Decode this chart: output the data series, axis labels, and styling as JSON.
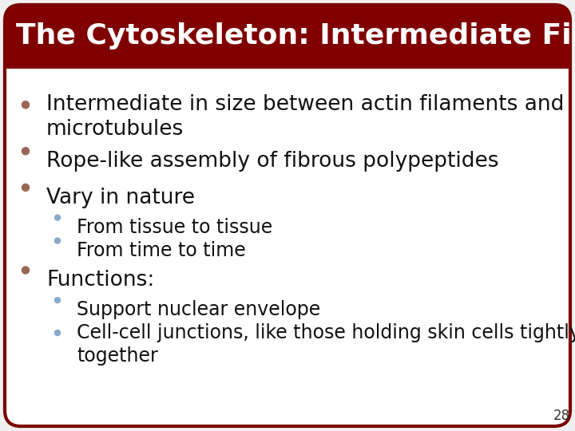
{
  "title": "The Cytoskeleton: Intermediate Filaments",
  "title_bg_color": "#800000",
  "title_text_color": "#FFFFFF",
  "slide_bg_color": "#F0F0F0",
  "content_bg_color": "#FFFFFF",
  "border_color": "#7B0000",
  "bullet_color_main": "#996655",
  "bullet_color_sub": "#88AACC",
  "page_number": "28",
  "bullets": [
    {
      "level": 1,
      "text": "Intermediate in size between actin filaments and\nmicrotubules"
    },
    {
      "level": 1,
      "text": "Rope-like assembly of fibrous polypeptides"
    },
    {
      "level": 1,
      "text": "Vary in nature"
    },
    {
      "level": 2,
      "text": "From tissue to tissue"
    },
    {
      "level": 2,
      "text": "From time to time"
    },
    {
      "level": 1,
      "text": "Functions:"
    },
    {
      "level": 2,
      "text": "Support nuclear envelope"
    },
    {
      "level": 2,
      "text": "Cell-cell junctions, like those holding skin cells tightly\ntogether"
    }
  ],
  "title_fontsize": 26,
  "bullet1_fontsize": 19,
  "bullet2_fontsize": 17,
  "page_num_fontsize": 12
}
